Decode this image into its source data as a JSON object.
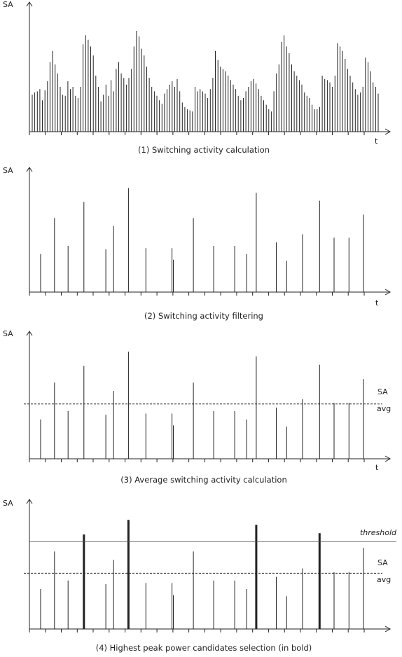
{
  "axis_labels": {
    "y": "SA",
    "x": "t"
  },
  "avg_label": {
    "line1": "SA",
    "line2": "avg"
  },
  "threshold_label": "threshold",
  "captions": [
    "(1) Switching activity calculation",
    "(2) Switching activity filtering",
    "(3) Average switching activity calculation",
    "(4) Highest peak power candidates selection (in bold)"
  ],
  "chart_data": [
    {
      "type": "bar",
      "title": "(1) Switching activity calculation",
      "values": [
        0.33,
        0.35,
        0.36,
        0.38,
        0.28,
        0.37,
        0.45,
        0.62,
        0.72,
        0.6,
        0.52,
        0.4,
        0.33,
        0.32,
        0.45,
        0.38,
        0.4,
        0.32,
        0.3,
        0.4,
        0.78,
        0.86,
        0.82,
        0.76,
        0.68,
        0.5,
        0.4,
        0.27,
        0.33,
        0.42,
        0.32,
        0.46,
        0.36,
        0.56,
        0.62,
        0.52,
        0.48,
        0.42,
        0.48,
        0.56,
        0.76,
        0.9,
        0.85,
        0.74,
        0.68,
        0.58,
        0.48,
        0.4,
        0.36,
        0.32,
        0.28,
        0.25,
        0.34,
        0.38,
        0.42,
        0.45,
        0.4,
        0.47,
        0.36,
        0.26,
        0.22,
        0.2,
        0.19,
        0.18,
        0.4,
        0.36,
        0.38,
        0.36,
        0.34,
        0.3,
        0.38,
        0.48,
        0.72,
        0.64,
        0.58,
        0.56,
        0.54,
        0.5,
        0.46,
        0.42,
        0.38,
        0.32,
        0.28,
        0.3,
        0.36,
        0.4,
        0.45,
        0.47,
        0.43,
        0.38,
        0.32,
        0.28,
        0.24,
        0.2,
        0.18,
        0.36,
        0.52,
        0.6,
        0.8,
        0.86,
        0.76,
        0.7,
        0.6,
        0.54,
        0.5,
        0.46,
        0.42,
        0.35,
        0.32,
        0.3,
        0.24,
        0.2,
        0.2,
        0.22,
        0.5,
        0.47,
        0.46,
        0.44,
        0.4,
        0.5,
        0.79,
        0.76,
        0.72,
        0.65,
        0.56,
        0.5,
        0.44,
        0.38,
        0.33,
        0.35,
        0.4,
        0.66,
        0.62,
        0.54,
        0.44,
        0.4,
        0.34
      ],
      "ylim": [
        0,
        1
      ]
    },
    {
      "type": "bar",
      "title": "(2) Switching activity filtering",
      "values": [
        0.33,
        0.64,
        0.4,
        0.78,
        0.37,
        0.57,
        0.9,
        0.38,
        0.38,
        0.28,
        0.64,
        0.4,
        0.4,
        0.33,
        0.86,
        0.43,
        0.27,
        0.5,
        0.79,
        0.47,
        0.47,
        0.67
      ],
      "ylim": [
        0,
        1
      ]
    },
    {
      "type": "bar",
      "title": "(3) Average switching activity calculation",
      "values": [
        0.33,
        0.64,
        0.4,
        0.78,
        0.37,
        0.57,
        0.9,
        0.38,
        0.38,
        0.28,
        0.64,
        0.4,
        0.4,
        0.33,
        0.86,
        0.43,
        0.27,
        0.5,
        0.79,
        0.47,
        0.47,
        0.67
      ],
      "avg_level": 0.46,
      "ylim": [
        0,
        1
      ]
    },
    {
      "type": "bar",
      "title": "(4) Highest peak power candidates selection (in bold)",
      "values": [
        0.33,
        0.64,
        0.4,
        0.78,
        0.37,
        0.57,
        0.9,
        0.38,
        0.38,
        0.28,
        0.64,
        0.4,
        0.4,
        0.33,
        0.86,
        0.43,
        0.27,
        0.5,
        0.79,
        0.47,
        0.47,
        0.67
      ],
      "bold": [
        3,
        6,
        14,
        18
      ],
      "avg_level": 0.46,
      "threshold_level": 0.72,
      "ylim": [
        0,
        1
      ]
    }
  ]
}
